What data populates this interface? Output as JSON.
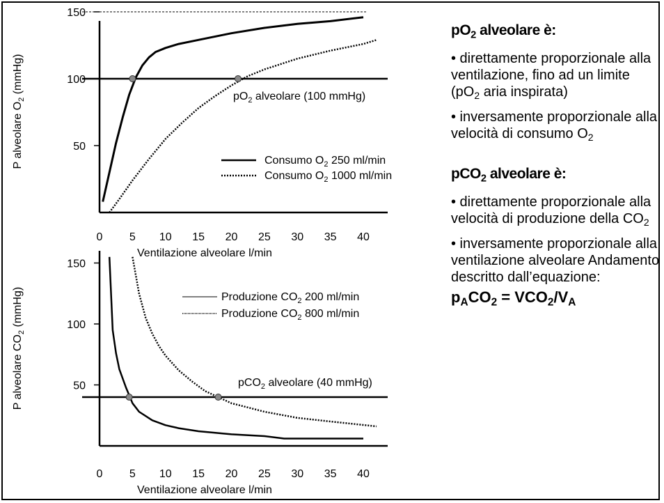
{
  "chart_data": [
    {
      "type": "line",
      "xlabel": "Ventilazione alveolare l/min",
      "ylabel": "P alveolare O2 (mmHg)",
      "xlim": [
        0,
        43
      ],
      "ylim": [
        0,
        155
      ],
      "xticks": [
        0,
        5,
        10,
        15,
        20,
        25,
        30,
        35,
        40
      ],
      "yticks": [
        50,
        100,
        150
      ],
      "reference_lines": [
        {
          "y": 150,
          "style": "thin-dashed"
        },
        {
          "y": 100,
          "style": "solid",
          "label": "pO₂ alveolare (100 mmHg)"
        }
      ],
      "series": [
        {
          "name": "Consumo O₂ 250 ml/min",
          "style": "solid",
          "x": [
            0.5,
            1.5,
            2.5,
            3.5,
            4.5,
            5.5,
            6.5,
            7.5,
            8.5,
            10,
            12,
            15,
            20,
            25,
            30,
            35,
            40
          ],
          "y": [
            8,
            30,
            52,
            71,
            88,
            101,
            110,
            116,
            120,
            123,
            126,
            129,
            134,
            138,
            141,
            143,
            146
          ]
        },
        {
          "name": "Consumo O₂ 1000 ml/min",
          "style": "dotted",
          "x": [
            1.5,
            3,
            5,
            7.5,
            10,
            12.5,
            15,
            17.5,
            20,
            22.5,
            25,
            30,
            35,
            40,
            42
          ],
          "y": [
            0,
            10,
            24,
            40,
            55,
            67,
            78,
            87,
            95,
            102,
            107,
            115,
            121,
            126,
            129
          ]
        }
      ],
      "markers": [
        {
          "x": 5,
          "y": 100
        },
        {
          "x": 21,
          "y": 100
        }
      ]
    },
    {
      "type": "line",
      "xlabel": "Ventilazione alveolare l/min",
      "ylabel": "P alveolare CO2 (mmHg)",
      "xlim": [
        0,
        43
      ],
      "ylim": [
        0,
        155
      ],
      "xticks": [
        0,
        5,
        10,
        15,
        20,
        25,
        30,
        35,
        40
      ],
      "yticks": [
        50,
        100,
        150
      ],
      "reference_lines": [
        {
          "y": 40,
          "style": "solid",
          "label": "pCO₂ alveolare (40 mmHg)"
        }
      ],
      "series": [
        {
          "name": "Produzione CO₂ 200 ml/min",
          "style": "solid",
          "x": [
            1.5,
            2,
            2.5,
            3,
            4,
            5,
            6,
            8,
            10,
            12,
            15,
            20,
            25,
            28,
            40
          ],
          "y": [
            155,
            95,
            76,
            63,
            48,
            35,
            28,
            21,
            17,
            14.5,
            12,
            9.5,
            8,
            6,
            6
          ]
        },
        {
          "name": "Produzione CO₂ 800 ml/min",
          "style": "dotted",
          "x": [
            5,
            6,
            7,
            8,
            9,
            10,
            12,
            14,
            16,
            18,
            20,
            25,
            30,
            35,
            42
          ],
          "y": [
            155,
            125,
            105,
            92,
            82,
            74,
            62,
            53,
            45,
            40,
            35,
            28,
            23,
            20,
            16
          ]
        }
      ],
      "markers": [
        {
          "x": 4.5,
          "y": 40
        },
        {
          "x": 18,
          "y": 40
        }
      ]
    }
  ],
  "panel": {
    "o2_heading": {
      "pre": "pO",
      "sub": "2",
      "post": " alveolare è:"
    },
    "o2_bullet1": {
      "pre": "• direttamente proporzionale alla ventilazione, fino ad un limite (pO",
      "sub": "2",
      "post": " aria inspirata)"
    },
    "o2_bullet2": {
      "pre": "• inversamente proporzionale alla velocità di consumo O",
      "sub": "2",
      "post": ""
    },
    "co2_heading": {
      "pre": "pCO",
      "sub": "2",
      "post": " alveolare è:"
    },
    "co2_bullet1": {
      "pre": "• direttamente proporzionale alla velocità di produzione della CO",
      "sub": "2",
      "post": ""
    },
    "co2_bullet2": "• inversamente proporzionale alla ventilazione alveolare Andamento descritto dall’equazione:",
    "equation": {
      "p": "p",
      "p_sub": "A",
      "co2": "CO",
      "co2_sub": "2",
      "mid": " = VCO",
      "mid_sub": "2",
      "slash": "/V",
      "v_sub": "A"
    }
  }
}
